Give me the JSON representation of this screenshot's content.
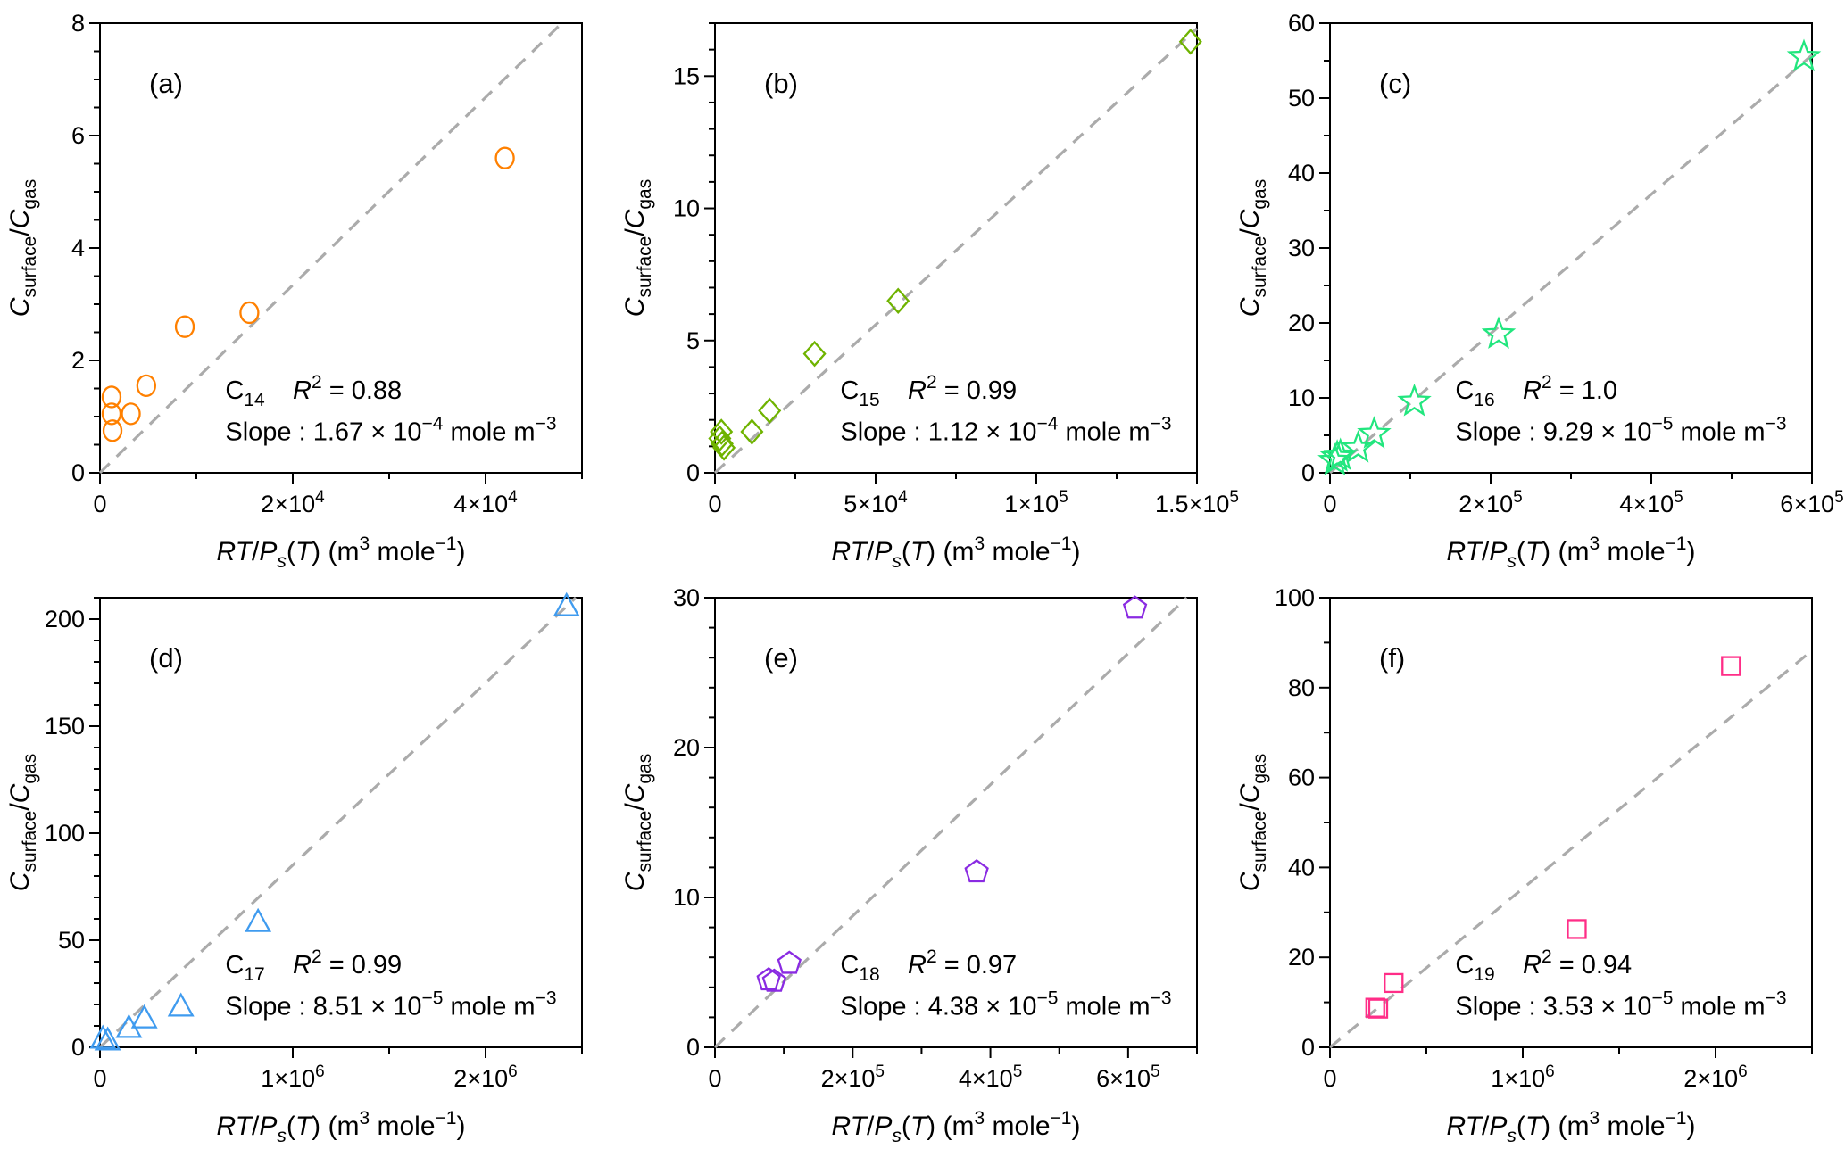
{
  "shared": {
    "frame_color": "#000000",
    "fit_line_color": "#ABABAB",
    "text_color": "#000000",
    "r_var": "R",
    "r_sup": "2",
    "times": "×",
    "ten": "10",
    "xlabel_plain": "RT/Ps(T) (m3 mole−1)",
    "ylabel_plain": "Csurface/Cgas",
    "axis_labels": {
      "y": {
        "C1": "C",
        "sub1": "surface",
        "slash": "/",
        "C2": "C",
        "sub2": "gas"
      },
      "x": {
        "RT": "RT",
        "slash": "/",
        "P": "P",
        "s": "s",
        "open": "(",
        "T": "T",
        "close_unit": ") (m",
        "sup_cube": "3",
        "unit_mid": " mole",
        "sup_inv": "−1",
        "close": ")"
      }
    }
  },
  "chart_data": [
    {
      "id": "a",
      "type": "scatter",
      "panel_label": "(a)",
      "series_label": {
        "base": "C",
        "sub": "14"
      },
      "r_squared": "0.88",
      "slope_text": {
        "prefix": "Slope : ",
        "mantissa": "1.67",
        "exp": "−4",
        "unit": "mole m",
        "unit_exp": "−3"
      },
      "slope_value": 0.000167,
      "marker": "circle",
      "color": "#FF8000",
      "xlim": [
        0,
        50000
      ],
      "ylim": [
        0,
        8
      ],
      "x_ticks": [
        {
          "v": 0,
          "t": "0"
        },
        {
          "v": 20000,
          "m": "2",
          "e": "4"
        },
        {
          "v": 40000,
          "m": "4",
          "e": "4"
        }
      ],
      "y_ticks": [
        0,
        2,
        4,
        6,
        8
      ],
      "x_minor_div": 2,
      "y_minor_div": 4,
      "points": [
        [
          1200,
          1.35
        ],
        [
          1200,
          1.05
        ],
        [
          1300,
          0.75
        ],
        [
          3200,
          1.05
        ],
        [
          4800,
          1.55
        ],
        [
          8800,
          2.6
        ],
        [
          15500,
          2.85
        ],
        [
          42000,
          5.6
        ]
      ]
    },
    {
      "id": "b",
      "type": "scatter",
      "panel_label": "(b)",
      "series_label": {
        "base": "C",
        "sub": "15"
      },
      "r_squared": "0.99",
      "slope_text": {
        "prefix": "Slope : ",
        "mantissa": "1.12",
        "exp": "−4",
        "unit": "mole m",
        "unit_exp": "−3"
      },
      "slope_value": 0.000112,
      "marker": "diamond",
      "color": "#6FB300",
      "xlim": [
        0,
        150000
      ],
      "ylim": [
        0,
        17
      ],
      "x_ticks": [
        {
          "v": 0,
          "t": "0"
        },
        {
          "v": 50000,
          "m": "5",
          "e": "4"
        },
        {
          "v": 100000,
          "m": "1",
          "e": "5"
        },
        {
          "v": 150000,
          "m": "1.5",
          "e": "5"
        }
      ],
      "y_ticks": [
        0,
        5,
        10,
        15
      ],
      "x_minor_div": 2,
      "y_minor_div": 5,
      "points": [
        [
          1500,
          1.3
        ],
        [
          2000,
          1.55
        ],
        [
          2200,
          1.1
        ],
        [
          2800,
          0.95
        ],
        [
          11500,
          1.55
        ],
        [
          17000,
          2.35
        ],
        [
          31000,
          4.5
        ],
        [
          57000,
          6.5
        ],
        [
          148000,
          16.3
        ]
      ]
    },
    {
      "id": "c",
      "type": "scatter",
      "panel_label": "(c)",
      "series_label": {
        "base": "C",
        "sub": "16"
      },
      "r_squared": "1.0",
      "slope_text": {
        "prefix": "Slope : ",
        "mantissa": "9.29",
        "exp": "−5",
        "unit": "mole m",
        "unit_exp": "−3"
      },
      "slope_value": 9.29e-05,
      "marker": "star",
      "color": "#22E67E",
      "xlim": [
        0,
        600000
      ],
      "ylim": [
        0,
        60
      ],
      "x_ticks": [
        {
          "v": 0,
          "t": "0"
        },
        {
          "v": 200000,
          "m": "2",
          "e": "5"
        },
        {
          "v": 400000,
          "m": "4",
          "e": "5"
        },
        {
          "v": 600000,
          "m": "6",
          "e": "5"
        }
      ],
      "y_ticks": [
        0,
        10,
        20,
        30,
        40,
        50,
        60
      ],
      "x_minor_div": 2,
      "y_minor_div": 2,
      "points": [
        [
          6000,
          1.6
        ],
        [
          9000,
          2.1
        ],
        [
          13000,
          2.3
        ],
        [
          35000,
          3.3
        ],
        [
          55000,
          5.2
        ],
        [
          105000,
          9.5
        ],
        [
          210000,
          18.5
        ],
        [
          590000,
          55.5
        ]
      ]
    },
    {
      "id": "d",
      "type": "scatter",
      "panel_label": "(d)",
      "series_label": {
        "base": "C",
        "sub": "17"
      },
      "r_squared": "0.99",
      "slope_text": {
        "prefix": "Slope : ",
        "mantissa": "8.51",
        "exp": "−5",
        "unit": "mole m",
        "unit_exp": "−3"
      },
      "slope_value": 8.51e-05,
      "marker": "triangle",
      "color": "#3F9BEF",
      "xlim": [
        0,
        2500000
      ],
      "ylim": [
        0,
        210
      ],
      "x_ticks": [
        {
          "v": 0,
          "t": "0"
        },
        {
          "v": 1000000,
          "m": "1",
          "e": "6"
        },
        {
          "v": 2000000,
          "m": "2",
          "e": "6"
        }
      ],
      "y_ticks": [
        0,
        50,
        100,
        150,
        200
      ],
      "x_minor_div": 2,
      "y_minor_div": 5,
      "points": [
        [
          15000,
          4.0
        ],
        [
          40000,
          3.2
        ],
        [
          150000,
          9.0
        ],
        [
          230000,
          13.5
        ],
        [
          420000,
          19.0
        ],
        [
          820000,
          58.5
        ],
        [
          2420000,
          206.0
        ]
      ]
    },
    {
      "id": "e",
      "type": "scatter",
      "panel_label": "(e)",
      "series_label": {
        "base": "C",
        "sub": "18"
      },
      "r_squared": "0.97",
      "slope_text": {
        "prefix": "Slope : ",
        "mantissa": "4.38",
        "exp": "−5",
        "unit": "mole m",
        "unit_exp": "−3"
      },
      "slope_value": 4.38e-05,
      "marker": "pentagon",
      "color": "#8A2BE2",
      "xlim": [
        0,
        700000
      ],
      "ylim": [
        0,
        30
      ],
      "x_ticks": [
        {
          "v": 0,
          "t": "0"
        },
        {
          "v": 200000,
          "m": "2",
          "e": "5"
        },
        {
          "v": 400000,
          "m": "4",
          "e": "5"
        },
        {
          "v": 600000,
          "m": "6",
          "e": "5"
        }
      ],
      "y_ticks": [
        0,
        10,
        20,
        30
      ],
      "x_minor_div": 2,
      "y_minor_div": 5,
      "points": [
        [
          78000,
          4.5
        ],
        [
          86000,
          4.4
        ],
        [
          108000,
          5.6
        ],
        [
          380000,
          11.7
        ],
        [
          610000,
          29.3
        ]
      ]
    },
    {
      "id": "f",
      "type": "scatter",
      "panel_label": "(f)",
      "series_label": {
        "base": "C",
        "sub": "19"
      },
      "r_squared": "0.94",
      "slope_text": {
        "prefix": "Slope : ",
        "mantissa": "3.53",
        "exp": "−5",
        "unit": "mole m",
        "unit_exp": "−3"
      },
      "slope_value": 3.53e-05,
      "marker": "square",
      "color": "#FF2D87",
      "xlim": [
        0,
        2500000
      ],
      "ylim": [
        0,
        100
      ],
      "x_ticks": [
        {
          "v": 0,
          "t": "0"
        },
        {
          "v": 1000000,
          "m": "1",
          "e": "6"
        },
        {
          "v": 2000000,
          "m": "2",
          "e": "6"
        }
      ],
      "y_ticks": [
        0,
        20,
        40,
        60,
        80,
        100
      ],
      "x_minor_div": 2,
      "y_minor_div": 2,
      "points": [
        [
          235000,
          8.8
        ],
        [
          250000,
          8.6
        ],
        [
          330000,
          14.3
        ],
        [
          1280000,
          26.3
        ],
        [
          2080000,
          84.8
        ]
      ]
    }
  ]
}
